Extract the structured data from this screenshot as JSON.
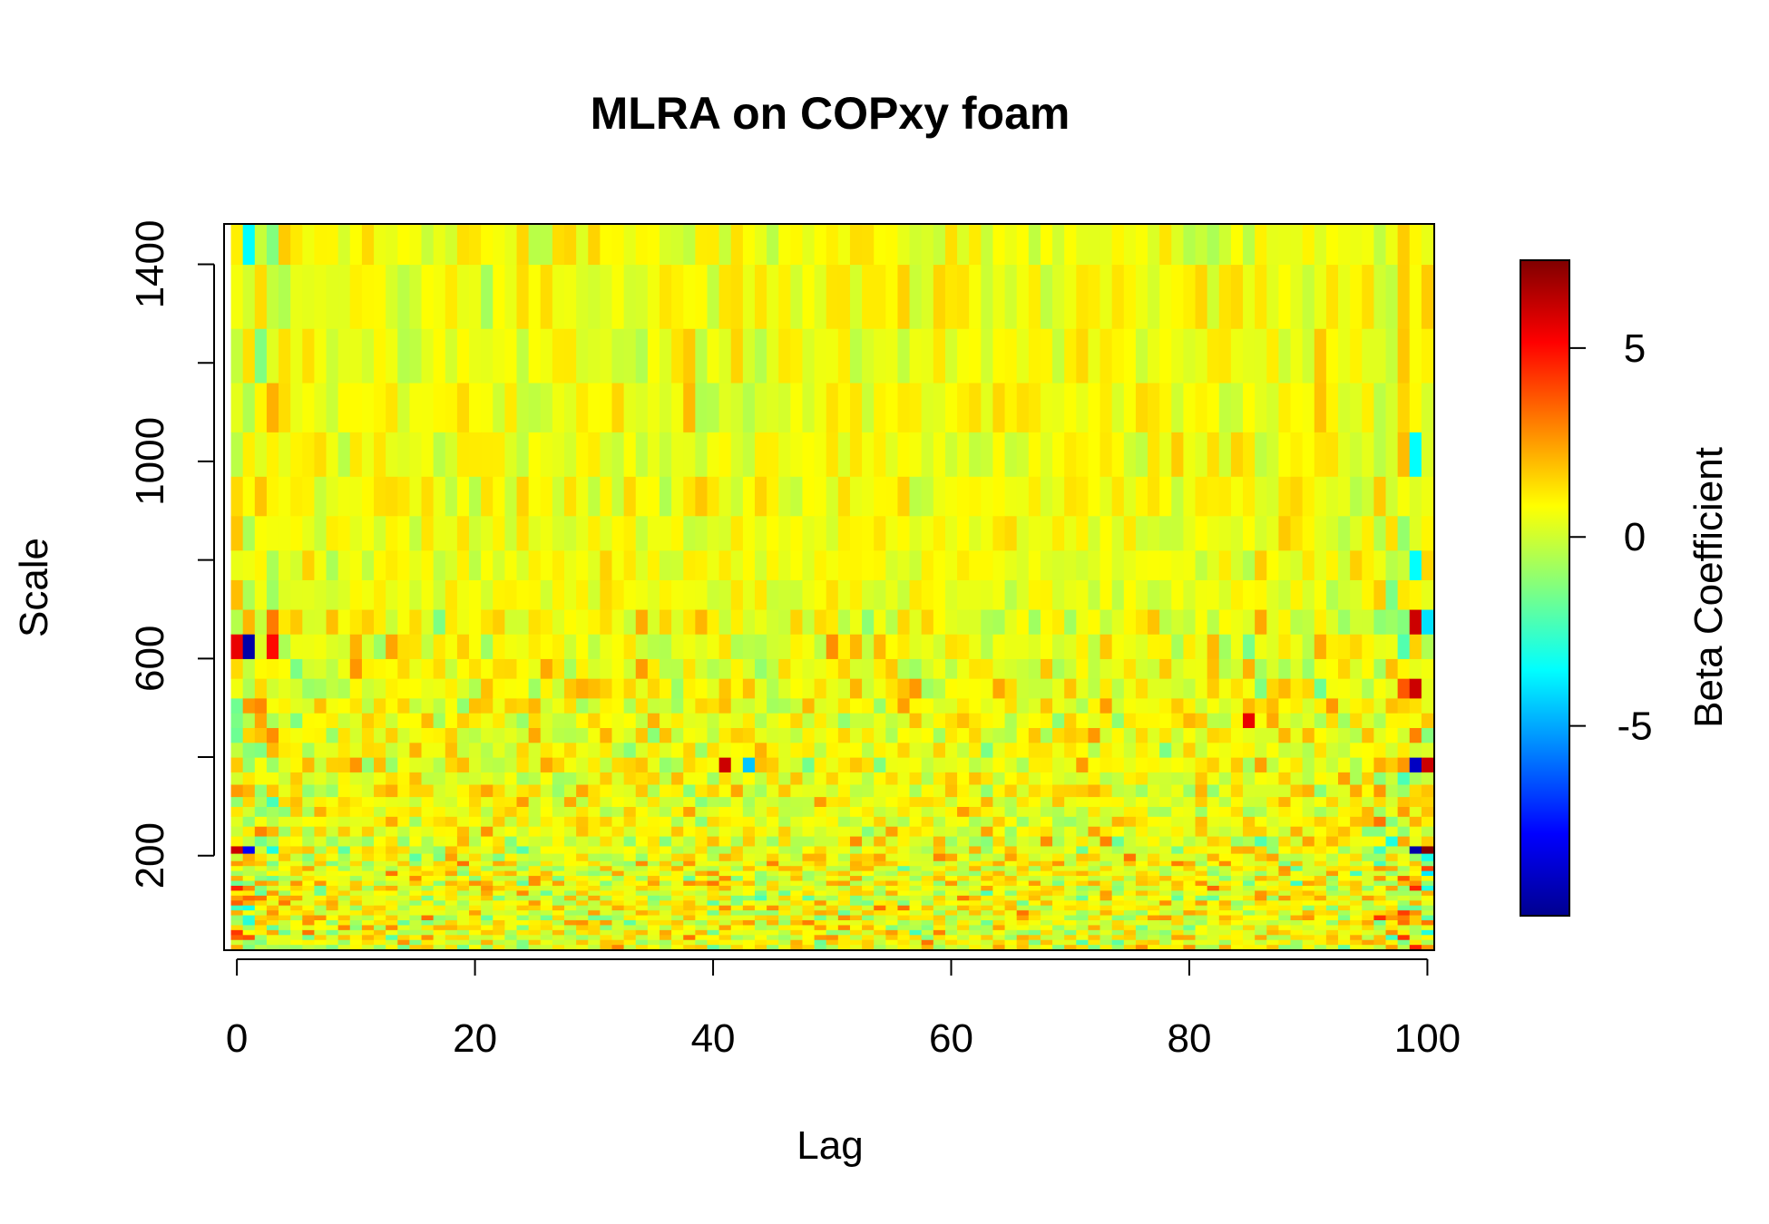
{
  "chart_data": {
    "type": "heatmap",
    "title": "MLRA on COPxy foam",
    "xlabel": "Lag",
    "ylabel": "Scale",
    "colorbar_label": "Beta Coefficient",
    "xlim": [
      -1,
      100.5
    ],
    "ylim": [
      10,
      1480
    ],
    "x_ticks": [
      0,
      20,
      40,
      60,
      80,
      100
    ],
    "x_tick_labels": [
      "0",
      "20",
      "40",
      "60",
      "80",
      "100"
    ],
    "y_ticks": [
      200,
      400,
      600,
      800,
      1000,
      1200,
      1400
    ],
    "y_tick_labels": [
      "200",
      "",
      "600",
      "",
      "1000",
      "",
      "1400"
    ],
    "colorbar_range": [
      -10,
      7.3
    ],
    "colorbar_ticks": [
      5,
      0,
      -5
    ],
    "colorbar_tick_labels": [
      "5",
      "0",
      "-5"
    ],
    "colormap": [
      "#00008F",
      "#0000FF",
      "#0080FF",
      "#00FFFF",
      "#80FF80",
      "#FFFF00",
      "#FF8000",
      "#FF0000",
      "#800000"
    ],
    "lags": {
      "start": 0,
      "end": 100,
      "step": 1
    },
    "scale_edges": [
      10,
      20,
      30,
      40,
      50,
      60,
      70,
      80,
      90,
      100,
      110,
      120,
      130,
      140,
      150,
      160,
      170,
      180,
      190,
      205,
      220,
      240,
      260,
      280,
      300,
      320,
      345,
      370,
      400,
      430,
      460,
      490,
      520,
      560,
      600,
      650,
      700,
      760,
      820,
      890,
      970,
      1060,
      1160,
      1270,
      1400,
      1480
    ],
    "value_range": [
      -10,
      7.3
    ],
    "notable_values": [
      {
        "lag": 1,
        "scale": 620,
        "value": -9.5
      },
      {
        "lag": 0,
        "scale": 620,
        "value": 5.5
      },
      {
        "lag": 3,
        "scale": 620,
        "value": 5
      },
      {
        "lag": 99,
        "scale": 385,
        "value": -9
      },
      {
        "lag": 100,
        "scale": 385,
        "value": 6
      },
      {
        "lag": 99,
        "scale": 212,
        "value": -9.5
      },
      {
        "lag": 100,
        "scale": 212,
        "value": 7.2
      },
      {
        "lag": 0,
        "scale": 212,
        "value": 6
      },
      {
        "lag": 1,
        "scale": 212,
        "value": -8
      },
      {
        "lag": 41,
        "scale": 385,
        "value": 6
      },
      {
        "lag": 43,
        "scale": 385,
        "value": -4.5
      },
      {
        "lag": 85,
        "scale": 470,
        "value": 5.5
      },
      {
        "lag": 99,
        "scale": 540,
        "value": 6
      },
      {
        "lag": 99,
        "scale": 670,
        "value": 6
      },
      {
        "lag": 100,
        "scale": 670,
        "value": -4
      },
      {
        "lag": 99,
        "scale": 780,
        "value": -3.5
      },
      {
        "lag": 99,
        "scale": 1010,
        "value": -3.5
      },
      {
        "lag": 1,
        "scale": 1440,
        "value": -3.5
      }
    ]
  }
}
